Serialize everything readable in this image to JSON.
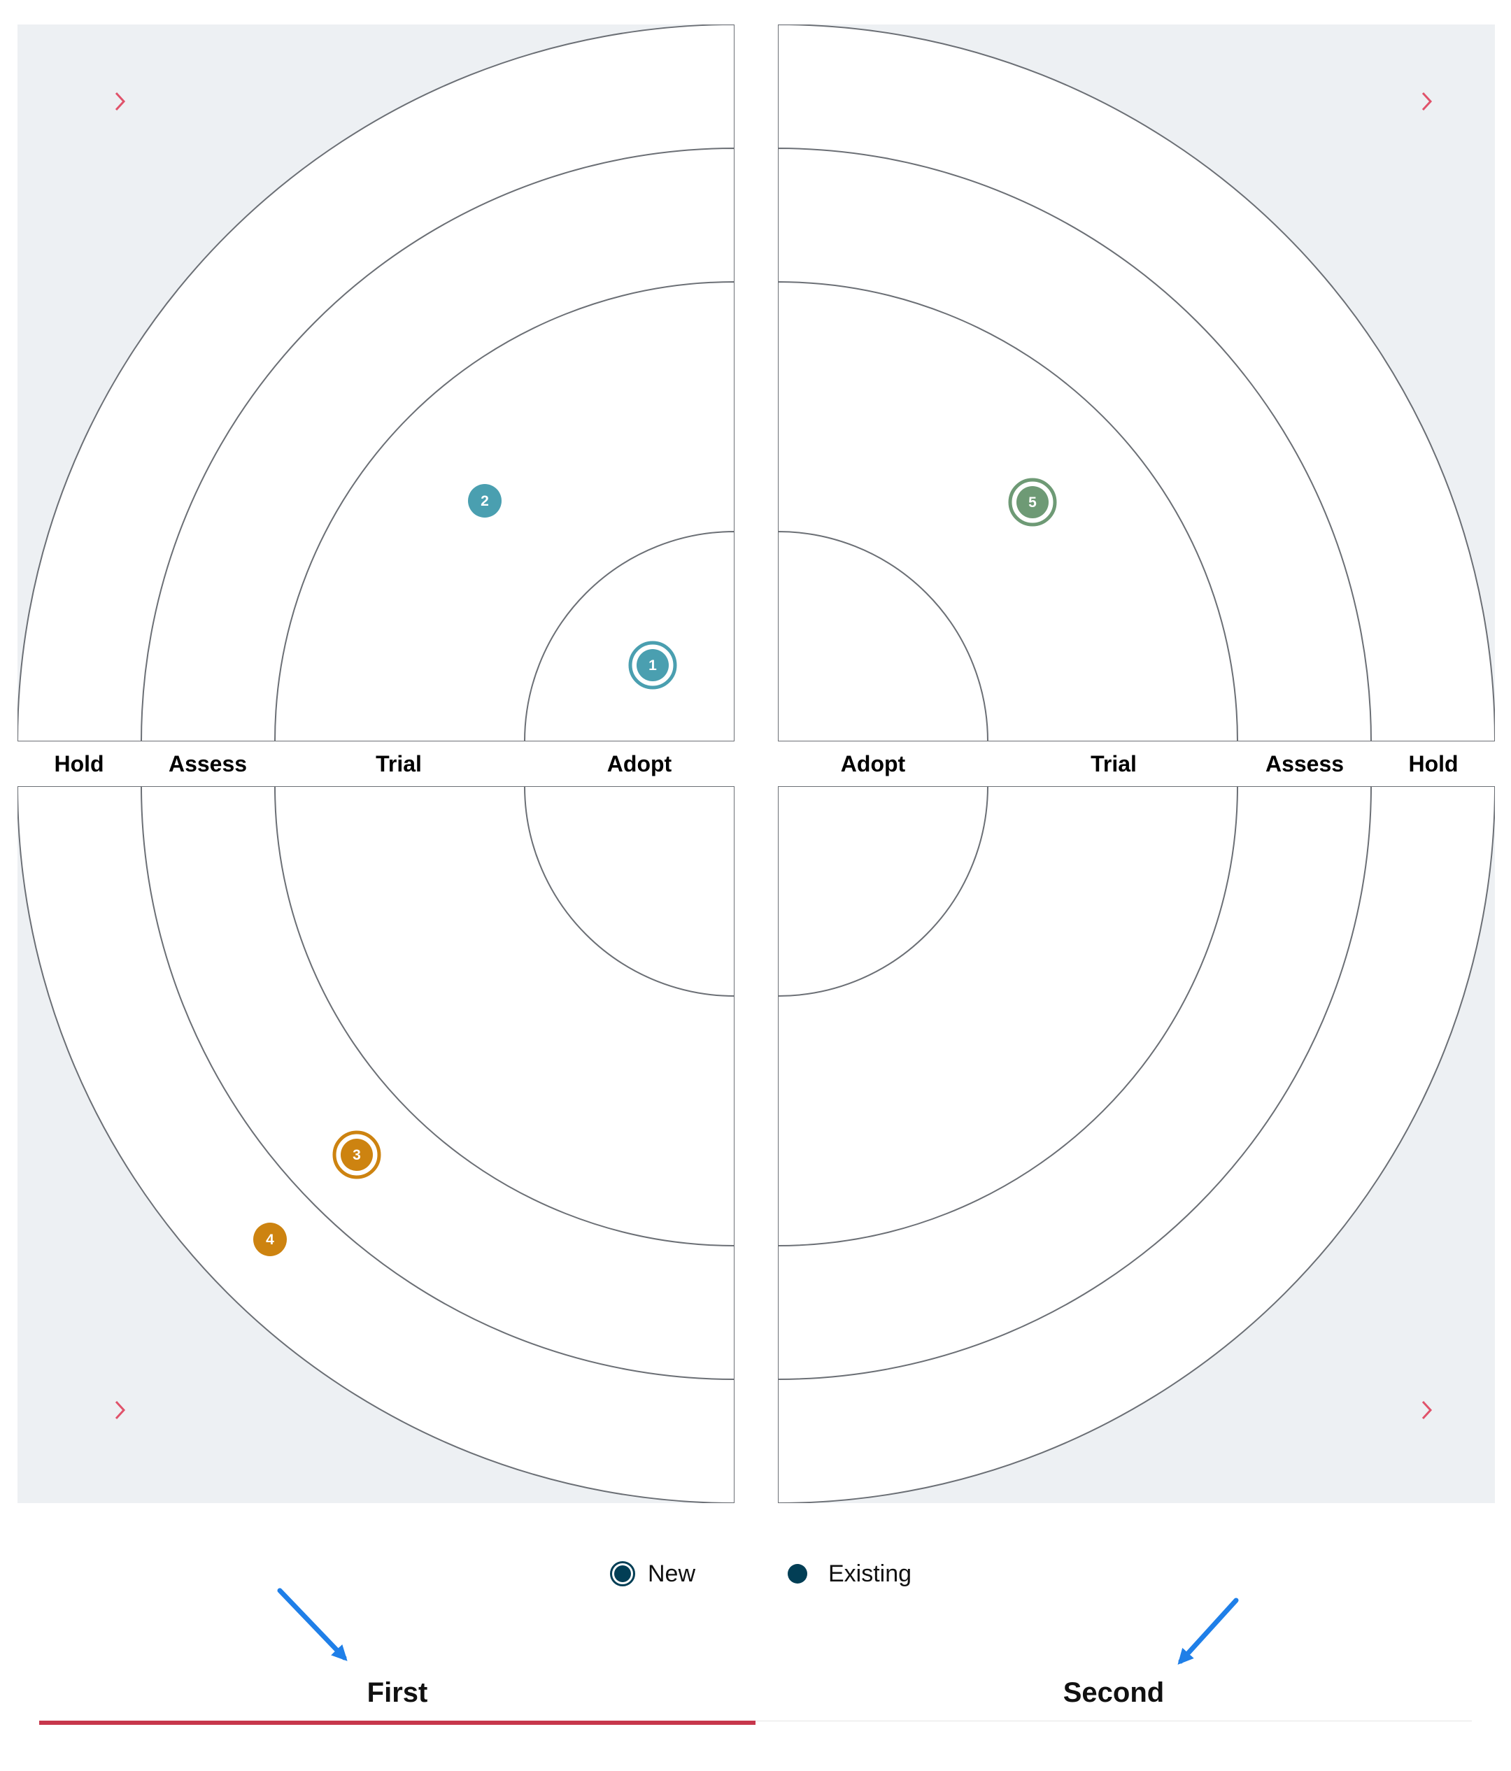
{
  "diagram": {
    "type": "technology-radar",
    "ring_labels_left": [
      "Hold",
      "Assess",
      "Trial",
      "Adopt"
    ],
    "ring_labels_right": [
      "Adopt",
      "Trial",
      "Assess",
      "Hold"
    ],
    "colors": {
      "quadrant_background": "#edf0f3",
      "ring_line": "#6b6f75",
      "chevron": "#e0526a",
      "teal_blip": "#4a9fb0",
      "green_blip": "#6e9a75",
      "orange_blip": "#cd8310",
      "tab_active_underline": "#c7374c",
      "annotation_arrow": "#1f7fe8"
    },
    "blips": [
      {
        "number": "1",
        "quadrant": "top-left",
        "ring": "Adopt",
        "status": "new",
        "color": "#4a9fb0"
      },
      {
        "number": "2",
        "quadrant": "top-left",
        "ring": "Trial",
        "status": "existing",
        "color": "#4a9fb0"
      },
      {
        "number": "3",
        "quadrant": "bottom-left",
        "ring": "Assess",
        "status": "new",
        "color": "#cd8310"
      },
      {
        "number": "4",
        "quadrant": "bottom-left",
        "ring": "Hold",
        "status": "existing",
        "color": "#cd8310"
      },
      {
        "number": "5",
        "quadrant": "top-right",
        "ring": "Trial",
        "status": "new",
        "color": "#6e9a75"
      }
    ]
  },
  "legend": {
    "new_label": "New",
    "existing_label": "Existing"
  },
  "tabs": [
    {
      "label": "First",
      "active": true
    },
    {
      "label": "Second",
      "active": false
    }
  ],
  "icons": {
    "quadrant_expand": "chevron-right-icon",
    "annotation": "arrow-icon"
  }
}
